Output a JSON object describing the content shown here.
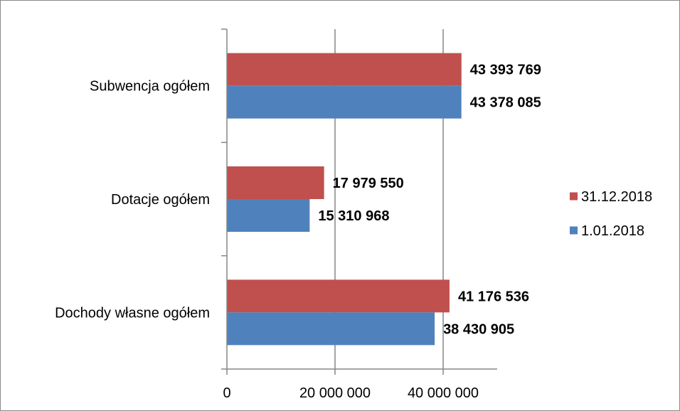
{
  "chart_data": {
    "type": "bar",
    "orientation": "horizontal",
    "categories": [
      "Subwencja ogółem",
      "Dotacje ogółem",
      "Dochody własne ogółem"
    ],
    "series": [
      {
        "name": "31.12.2018",
        "color": "#c0504d",
        "values": [
          43393769,
          17979550,
          41176536
        ],
        "labels": [
          "43 393 769",
          "17 979 550",
          "41 176 536"
        ]
      },
      {
        "name": "1.01.2018",
        "color": "#4f81bd",
        "values": [
          43378085,
          15310968,
          38430905
        ],
        "labels": [
          "43 378 085",
          "15 310 968",
          "38 430 905"
        ]
      }
    ],
    "xlim": [
      0,
      50000000
    ],
    "xticks": [
      0,
      20000000,
      40000000
    ],
    "xtick_labels": [
      "0",
      "20 000 000",
      "40 000 000"
    ],
    "grid": true,
    "legend_position": "right",
    "title": "",
    "xlabel": "",
    "ylabel": ""
  }
}
